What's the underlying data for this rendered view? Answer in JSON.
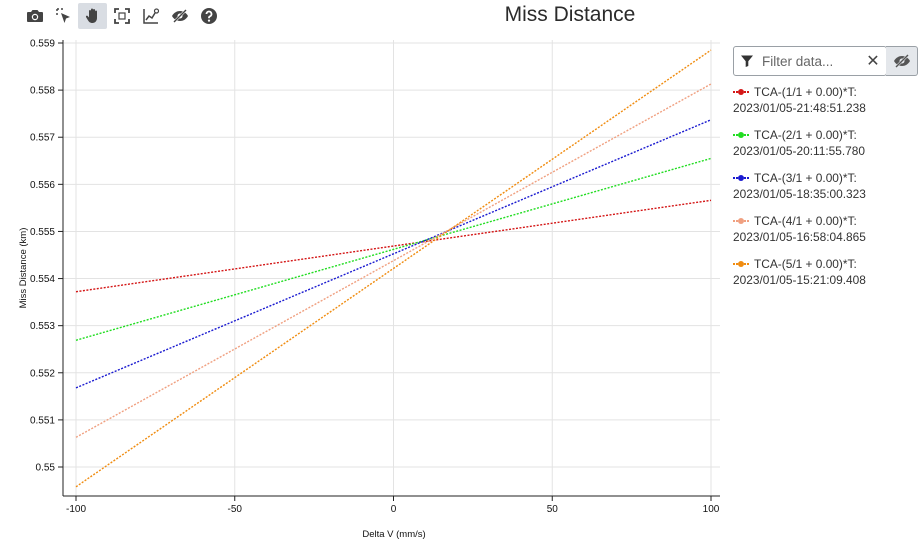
{
  "toolbar": {
    "buttons": [
      {
        "name": "camera-icon",
        "active": false
      },
      {
        "name": "select-pointer-icon",
        "active": false
      },
      {
        "name": "pan-hand-icon",
        "active": true
      },
      {
        "name": "autoscale-icon",
        "active": false
      },
      {
        "name": "chart-settings-icon",
        "active": false
      },
      {
        "name": "eye-slash-icon",
        "active": false
      },
      {
        "name": "help-icon",
        "active": false
      }
    ]
  },
  "filter": {
    "placeholder": "Filter data...",
    "clear_label": "✕"
  },
  "chart_data": {
    "type": "line",
    "title": "Miss Distance",
    "xlabel": "Delta V (mm/s)",
    "ylabel": "Miss Distance (km)",
    "xlim": [
      -100,
      100
    ],
    "ylim": [
      0.5494,
      0.559
    ],
    "xticks": [
      -100,
      -50,
      0,
      50,
      100
    ],
    "xtick_labels": [
      "-100",
      "-50",
      "0",
      "50",
      "100"
    ],
    "yticks": [
      0.55,
      0.551,
      0.552,
      0.553,
      0.554,
      0.555,
      0.556,
      0.557,
      0.558,
      0.559
    ],
    "ytick_labels": [
      "0.55",
      "0.551",
      "0.552",
      "0.553",
      "0.554",
      "0.555",
      "0.556",
      "0.557",
      "0.558",
      "0.559"
    ],
    "grid": true,
    "legend": "right",
    "line_style": "dotted",
    "series": [
      {
        "label_line1": "TCA-(1/1 + 0.00)*T:",
        "label_line2": "2023/01/05-21:48:51.238",
        "color": "#d41717",
        "x": [
          -100,
          100
        ],
        "y": [
          0.55372,
          0.55566
        ]
      },
      {
        "label_line1": "TCA-(2/1 + 0.00)*T:",
        "label_line2": "2023/01/05-20:11:55.780",
        "color": "#22dd22",
        "x": [
          -100,
          100
        ],
        "y": [
          0.55269,
          0.55655
        ]
      },
      {
        "label_line1": "TCA-(3/1 + 0.00)*T:",
        "label_line2": "2023/01/05-18:35:00.323",
        "color": "#1a1ad0",
        "x": [
          -100,
          100
        ],
        "y": [
          0.55168,
          0.55737
        ]
      },
      {
        "label_line1": "TCA-(4/1 + 0.00)*T:",
        "label_line2": "2023/01/05-16:58:04.865",
        "color": "#f0a080",
        "x": [
          -100,
          100
        ],
        "y": [
          0.55063,
          0.55813
        ]
      },
      {
        "label_line1": "TCA-(5/1 + 0.00)*T:",
        "label_line2": "2023/01/05-15:21:09.408",
        "color": "#f08c10",
        "x": [
          -100,
          100
        ],
        "y": [
          0.54958,
          0.55885
        ]
      }
    ]
  }
}
